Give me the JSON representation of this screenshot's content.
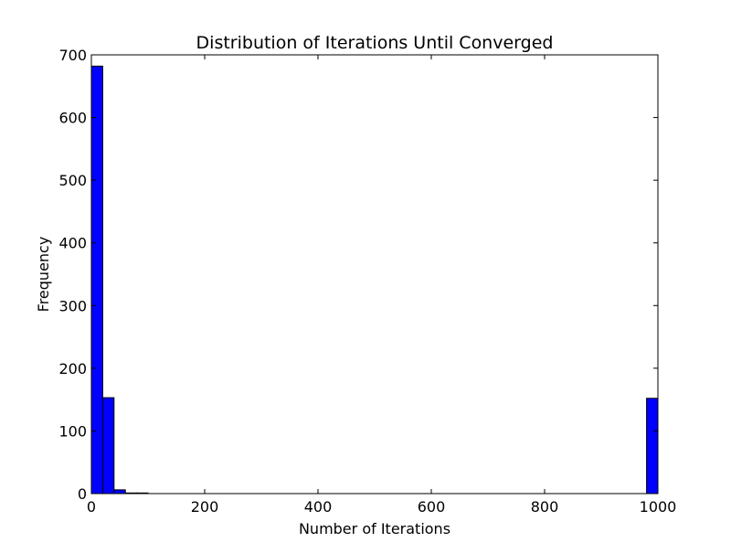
{
  "chart_data": {
    "type": "bar",
    "title": "Distribution of Iterations Until Converged",
    "xlabel": "Number of Iterations",
    "ylabel": "Frequency",
    "xlim": [
      0,
      1000
    ],
    "ylim": [
      0,
      700
    ],
    "xticks": [
      0,
      200,
      400,
      600,
      800,
      1000
    ],
    "yticks": [
      0,
      100,
      200,
      300,
      400,
      500,
      600,
      700
    ],
    "bin_width": 20,
    "bins": [
      {
        "x0": 0,
        "x1": 20,
        "value": 682
      },
      {
        "x0": 20,
        "x1": 40,
        "value": 153
      },
      {
        "x0": 40,
        "x1": 60,
        "value": 6
      },
      {
        "x0": 60,
        "x1": 80,
        "value": 1
      },
      {
        "x0": 80,
        "x1": 100,
        "value": 1
      },
      {
        "x0": 980,
        "x1": 1000,
        "value": 152
      }
    ],
    "bar_color": "#0000ff",
    "edge_color": "#000000",
    "grid": false,
    "legend": false
  }
}
